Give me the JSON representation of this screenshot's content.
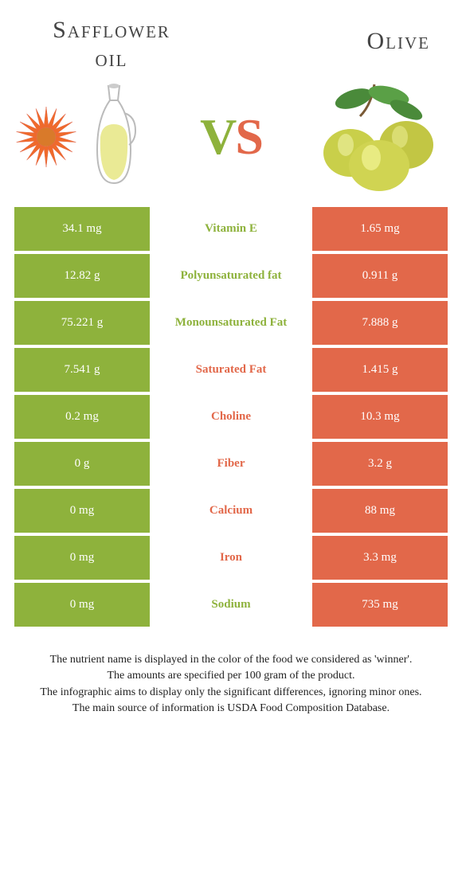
{
  "colors": {
    "left": "#8eb23c",
    "right": "#e2684a",
    "title": "#444444",
    "footer": "#222222",
    "bg": "#ffffff"
  },
  "leftFood": {
    "title": "Safflower\noil"
  },
  "rightFood": {
    "title": "Olive"
  },
  "vs": {
    "v": "V",
    "s": "S"
  },
  "rows": [
    {
      "left": "34.1 mg",
      "mid": "Vitamin E",
      "right": "1.65 mg",
      "winner": "left"
    },
    {
      "left": "12.82 g",
      "mid": "Polyunsaturated fat",
      "right": "0.911 g",
      "winner": "left"
    },
    {
      "left": "75.221 g",
      "mid": "Monounsaturated Fat",
      "right": "7.888 g",
      "winner": "left"
    },
    {
      "left": "7.541 g",
      "mid": "Saturated Fat",
      "right": "1.415 g",
      "winner": "right"
    },
    {
      "left": "0.2 mg",
      "mid": "Choline",
      "right": "10.3 mg",
      "winner": "right"
    },
    {
      "left": "0 g",
      "mid": "Fiber",
      "right": "3.2 g",
      "winner": "right"
    },
    {
      "left": "0 mg",
      "mid": "Calcium",
      "right": "88 mg",
      "winner": "right"
    },
    {
      "left": "0 mg",
      "mid": "Iron",
      "right": "3.3 mg",
      "winner": "right"
    },
    {
      "left": "0 mg",
      "mid": "Sodium",
      "right": "735 mg",
      "winner": "left"
    }
  ],
  "footer": {
    "l1": "The nutrient name is displayed in the color of the food we considered as 'winner'.",
    "l2": "The amounts are specified per 100 gram of the product.",
    "l3": "The infographic aims to display only the significant differences, ignoring minor ones.",
    "l4": "The main source of information is USDA Food Composition Database."
  }
}
